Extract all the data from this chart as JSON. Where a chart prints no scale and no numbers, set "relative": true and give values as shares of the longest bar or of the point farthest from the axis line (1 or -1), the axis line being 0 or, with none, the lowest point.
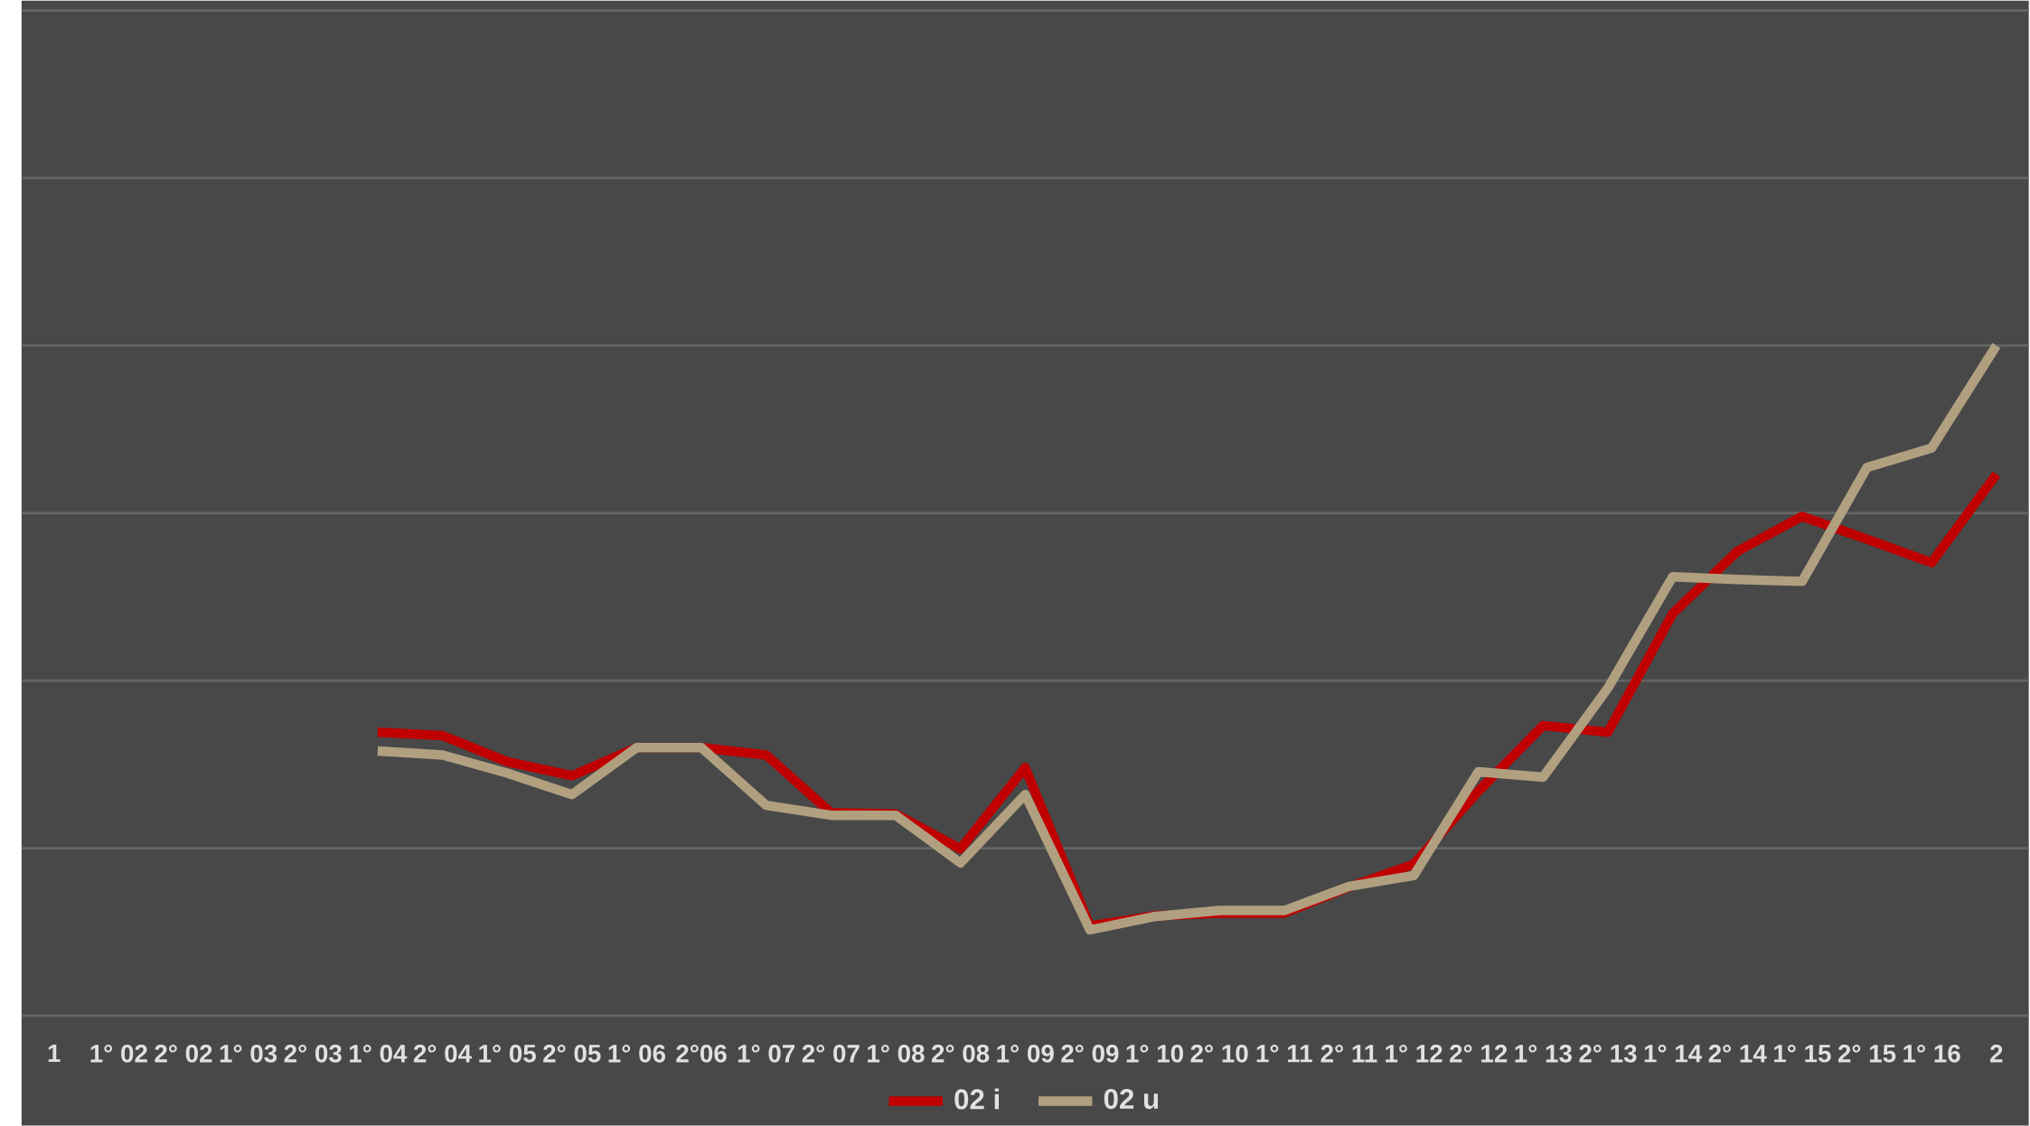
{
  "chart_data": {
    "type": "line",
    "relative": true,
    "grid": "y",
    "legend": "bottom",
    "line_style": "solid",
    "marker": "none",
    "categories": [
      "1",
      "1° 02",
      "2° 02",
      "1° 03",
      "2° 03",
      "1° 04",
      "2° 04",
      "1° 05",
      "2° 05",
      "1° 06",
      "2°06",
      "1° 07",
      "2° 07",
      "1° 08",
      "2° 08",
      "1° 09",
      "2° 09",
      "1° 10",
      "2° 10",
      "1° 11",
      "2° 11",
      "1° 12",
      "2° 12",
      "1° 13",
      "2° 13",
      "1° 14",
      "2° 14",
      "1° 15",
      "2° 15",
      "1° 16",
      "2"
    ],
    "series": [
      {
        "name": "02 i",
        "color": "#c00000",
        "values": [
          null,
          null,
          null,
          null,
          null,
          0.423,
          0.418,
          0.379,
          0.358,
          0.4,
          0.4,
          0.389,
          0.303,
          0.301,
          0.249,
          0.37,
          0.134,
          0.149,
          0.153,
          0.153,
          0.192,
          0.226,
          0.335,
          0.433,
          0.423,
          0.6,
          0.693,
          0.745,
          0.711,
          0.676,
          0.808
        ]
      },
      {
        "name": "02 u",
        "color": "#b0a080",
        "values": [
          null,
          null,
          null,
          null,
          null,
          0.395,
          0.389,
          0.362,
          0.33,
          0.4,
          0.4,
          0.314,
          0.299,
          0.299,
          0.228,
          0.33,
          0.128,
          0.148,
          0.157,
          0.157,
          0.193,
          0.209,
          0.364,
          0.356,
          0.489,
          0.655,
          0.651,
          0.648,
          0.818,
          0.847,
          1
        ]
      }
    ]
  }
}
